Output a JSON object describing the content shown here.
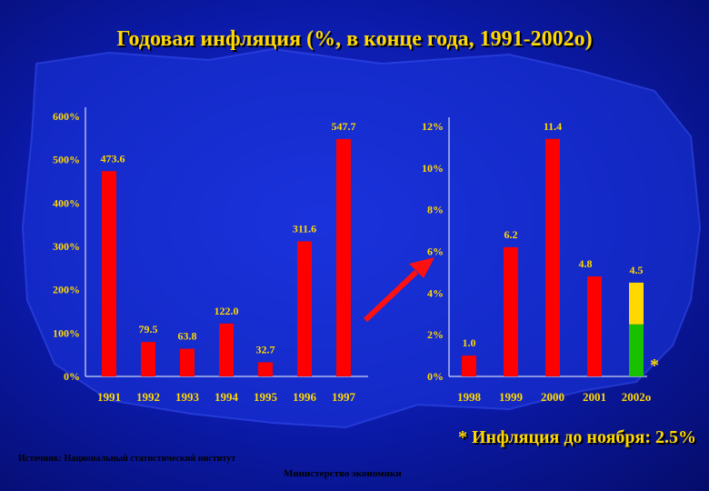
{
  "title": "Годовая инфляция (%, в конце года, 1991-2002о)",
  "footnote": "* Инфляция до ноября: 2.5%",
  "source": "Источник: Национальный статистический институт",
  "ministry": "Министерство экономики",
  "colors": {
    "bar": "#ff0000",
    "bar_top": "#ffd800",
    "bar_bottom": "#18c000",
    "text_yellow": "#ffd800",
    "arrow": "#ff1010"
  },
  "chart_data": [
    {
      "type": "bar",
      "categories": [
        "1991",
        "1992",
        "1993",
        "1994",
        "1995",
        "1996",
        "1997"
      ],
      "values": [
        473.6,
        79.5,
        63.8,
        122.0,
        32.7,
        311.6,
        547.7
      ],
      "value_labels": [
        "473.6",
        "79.5",
        "63.8",
        "122.0",
        "32.7",
        "311.6",
        "547.7"
      ],
      "y_ticks": [
        "0%",
        "100%",
        "200%",
        "300%",
        "400%",
        "500%",
        "600%"
      ],
      "ylim": [
        0,
        600
      ],
      "grid": false
    },
    {
      "type": "bar",
      "categories": [
        "1998",
        "1999",
        "2000",
        "2001",
        "2002о"
      ],
      "values": [
        1.0,
        6.2,
        11.4,
        4.8,
        4.5
      ],
      "value_labels": [
        "1.0",
        "6.2",
        "11.4",
        "4.8",
        "4.5"
      ],
      "stacked_last": {
        "parts": [
          2.5,
          2.0
        ],
        "colors": [
          "#18c000",
          "#ffd800"
        ],
        "marker": "*"
      },
      "y_ticks": [
        "0%",
        "2%",
        "4%",
        "6%",
        "8%",
        "10%",
        "12%"
      ],
      "ylim": [
        0,
        12
      ],
      "grid": false
    }
  ]
}
